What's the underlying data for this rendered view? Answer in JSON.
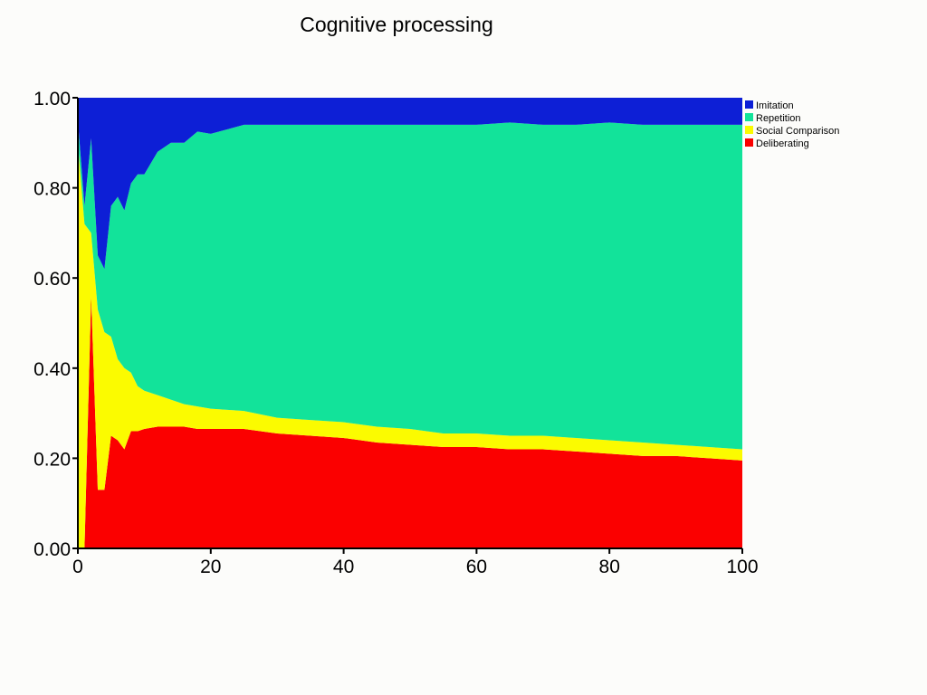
{
  "chart_data": {
    "type": "area",
    "stacked": true,
    "title": "Cognitive processing",
    "xlabel": "",
    "ylabel": "",
    "xlim": [
      0,
      100
    ],
    "ylim": [
      0,
      1
    ],
    "x_ticks": [
      "0",
      "20",
      "40",
      "60",
      "80",
      "100"
    ],
    "y_ticks": [
      "0.00",
      "0.20",
      "0.40",
      "0.60",
      "0.80",
      "1.00"
    ],
    "grid": false,
    "legend_position": "top-right",
    "legend": [
      {
        "name": "Imitation",
        "color": "#0d1fd6"
      },
      {
        "name": "Repetition",
        "color": "#12e39a"
      },
      {
        "name": "Social Comparison",
        "color": "#fbfb00"
      },
      {
        "name": "Deliberating",
        "color": "#fb0000"
      }
    ],
    "x_samples": [
      0,
      1,
      2,
      3,
      4,
      5,
      6,
      7,
      8,
      9,
      10,
      12,
      14,
      16,
      18,
      20,
      25,
      30,
      35,
      40,
      45,
      50,
      55,
      60,
      65,
      70,
      75,
      80,
      85,
      90,
      95,
      100
    ],
    "series": [
      {
        "name": "Deliberating",
        "color": "#fb0000",
        "values": [
          0.0,
          0.0,
          0.56,
          0.13,
          0.13,
          0.25,
          0.24,
          0.22,
          0.26,
          0.26,
          0.265,
          0.27,
          0.27,
          0.27,
          0.265,
          0.265,
          0.265,
          0.255,
          0.25,
          0.245,
          0.235,
          0.23,
          0.225,
          0.225,
          0.22,
          0.22,
          0.215,
          0.21,
          0.205,
          0.205,
          0.2,
          0.195
        ]
      },
      {
        "name": "Social Comparison",
        "color": "#fbfb00",
        "values": [
          0.9,
          0.72,
          0.14,
          0.4,
          0.35,
          0.22,
          0.18,
          0.18,
          0.13,
          0.1,
          0.085,
          0.07,
          0.06,
          0.05,
          0.05,
          0.045,
          0.04,
          0.035,
          0.035,
          0.035,
          0.035,
          0.035,
          0.03,
          0.03,
          0.03,
          0.03,
          0.03,
          0.03,
          0.03,
          0.025,
          0.025,
          0.025
        ]
      },
      {
        "name": "Repetition",
        "color": "#12e39a",
        "values": [
          0.05,
          0.04,
          0.21,
          0.12,
          0.14,
          0.29,
          0.36,
          0.35,
          0.42,
          0.47,
          0.48,
          0.54,
          0.57,
          0.58,
          0.61,
          0.61,
          0.635,
          0.65,
          0.655,
          0.66,
          0.67,
          0.675,
          0.685,
          0.685,
          0.695,
          0.69,
          0.695,
          0.705,
          0.705,
          0.71,
          0.715,
          0.72
        ]
      },
      {
        "name": "Imitation",
        "color": "#0d1fd6",
        "values": [
          0.05,
          0.24,
          0.09,
          0.35,
          0.38,
          0.24,
          0.22,
          0.25,
          0.19,
          0.17,
          0.17,
          0.12,
          0.1,
          0.1,
          0.075,
          0.08,
          0.06,
          0.06,
          0.06,
          0.06,
          0.06,
          0.06,
          0.06,
          0.06,
          0.055,
          0.06,
          0.06,
          0.055,
          0.06,
          0.06,
          0.06,
          0.06
        ]
      }
    ]
  }
}
